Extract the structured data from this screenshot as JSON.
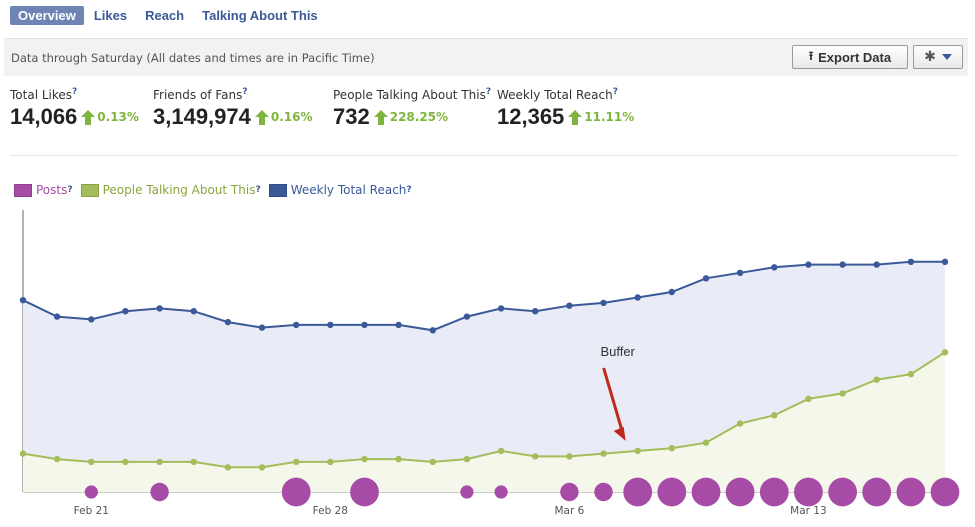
{
  "tabs": [
    {
      "label": "Overview",
      "active": true
    },
    {
      "label": "Likes",
      "active": false
    },
    {
      "label": "Reach",
      "active": false
    },
    {
      "label": "Talking About This",
      "active": false
    }
  ],
  "infobar": {
    "note": "Data through Saturday (All dates and times are in Pacific Time)",
    "export_label": "Export Data",
    "export_icon": "upload-tray-icon",
    "gear_icon": "gear-icon"
  },
  "stats": [
    {
      "label": "Total Likes",
      "q": "?",
      "value": "14,066",
      "change": "0.13%"
    },
    {
      "label": "Friends of Fans",
      "q": "?",
      "value": "3,149,974",
      "change": "0.16%"
    },
    {
      "label": "People Talking About This",
      "q": "?",
      "value": "732",
      "change": "228.25%"
    },
    {
      "label": "Weekly Total Reach",
      "q": "?",
      "value": "12,365",
      "change": "11.11%"
    }
  ],
  "colors": {
    "posts": "#a64ca6",
    "talking": "#a4bd5a",
    "reach": "#3b5998",
    "up": "#7fb53e",
    "annotation": "#c0281e"
  },
  "legend": [
    {
      "label": "Posts",
      "q": "?",
      "series": "posts"
    },
    {
      "label": "People Talking About This",
      "q": "?",
      "series": "talking"
    },
    {
      "label": "Weekly Total Reach",
      "q": "?",
      "series": "reach"
    }
  ],
  "chart_data": {
    "type": "line",
    "x_tick_labels": [
      "Feb 21",
      "Feb 28",
      "Mar 6",
      "Mar 13"
    ],
    "x_tick_index": [
      2,
      9,
      16,
      23
    ],
    "y_range": [
      0,
      100
    ],
    "series": [
      {
        "name": "Weekly Total Reach",
        "key": "reach",
        "values": [
          70,
          64,
          63,
          66,
          67,
          66,
          62,
          60,
          61,
          61,
          61,
          61,
          59,
          64,
          67,
          66,
          68,
          69,
          71,
          73,
          78,
          80,
          82,
          83,
          83,
          83,
          84,
          84
        ]
      },
      {
        "name": "People Talking About This",
        "key": "talking",
        "values": [
          14,
          12,
          11,
          11,
          11,
          11,
          9,
          9,
          11,
          11,
          12,
          12,
          11,
          12,
          15,
          13,
          13,
          14,
          15,
          16,
          18,
          25,
          28,
          34,
          36,
          41,
          43,
          51
        ]
      },
      {
        "name": "Posts",
        "key": "posts",
        "values": [
          0,
          0,
          1,
          0,
          2,
          0,
          0,
          0,
          4,
          0,
          4,
          0,
          0,
          1,
          1,
          0,
          2,
          2,
          4,
          4,
          4,
          4,
          4,
          4,
          4,
          4,
          4,
          4
        ]
      }
    ],
    "annotation": {
      "text": "Buffer",
      "target_index": 18
    }
  }
}
